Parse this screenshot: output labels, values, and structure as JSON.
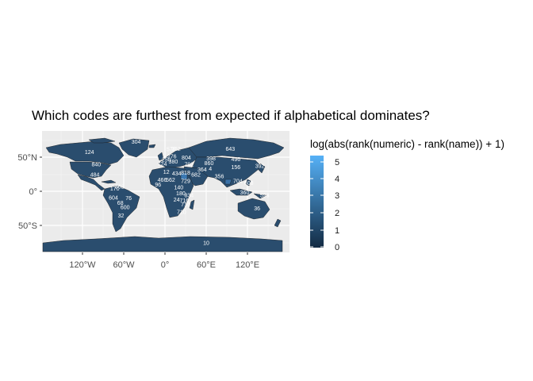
{
  "title": "Which codes are furthest from expected if alphabetical dominates?",
  "colors": {
    "panel_bg": "#ebebeb",
    "grid": "#ffffff",
    "scale_low": "#132b43",
    "scale_high": "#56b1f7",
    "land_fill_typical": "#2a4d6e",
    "country_border": "#1a1a1a"
  },
  "chart_data": {
    "type": "choropleth map",
    "title": "Which codes are furthest from expected if alphabetical dominates?",
    "projection": "equirectangular",
    "x_axis": {
      "ticks": [
        -120,
        -60,
        0,
        60,
        120
      ],
      "tick_labels": [
        "120°W",
        "60°W",
        "0°",
        "60°E",
        "120°E"
      ],
      "range": [
        -180,
        180
      ]
    },
    "y_axis": {
      "ticks": [
        -50,
        0,
        50
      ],
      "tick_labels": [
        "50°S",
        "0°",
        "50°N"
      ],
      "range": [
        -90,
        84
      ]
    },
    "grid": true,
    "legend": {
      "title": "log(abs(rank(numeric) - rank(name)) + 1)",
      "type": "continuous",
      "range": [
        0,
        5.6
      ],
      "ticks": [
        0,
        1,
        2,
        3,
        4,
        5
      ],
      "tick_labels": [
        "0",
        "1",
        "2",
        "3",
        "4",
        "5"
      ],
      "position": "right"
    },
    "country_labels": [
      {
        "text": "304",
        "lon": -42,
        "lat": 72
      },
      {
        "text": "124",
        "lon": -110,
        "lat": 57
      },
      {
        "text": "840",
        "lon": -100,
        "lat": 39
      },
      {
        "text": "484",
        "lon": -102,
        "lat": 24
      },
      {
        "text": "76",
        "lon": -53,
        "lat": -10
      },
      {
        "text": "604",
        "lon": -75,
        "lat": -9
      },
      {
        "text": "68",
        "lon": -65,
        "lat": -17
      },
      {
        "text": "600",
        "lon": -58,
        "lat": -23
      },
      {
        "text": "32",
        "lon": -64,
        "lat": -35
      },
      {
        "text": "170",
        "lon": -73,
        "lat": 4
      },
      {
        "text": "862",
        "lon": -66,
        "lat": 7
      },
      {
        "text": "643",
        "lon": 95,
        "lat": 62
      },
      {
        "text": "398",
        "lon": 67,
        "lat": 48
      },
      {
        "text": "496",
        "lon": 103,
        "lat": 47
      },
      {
        "text": "156",
        "lon": 103,
        "lat": 35
      },
      {
        "text": "356",
        "lon": 79,
        "lat": 22
      },
      {
        "text": "36",
        "lon": 134,
        "lat": -25
      },
      {
        "text": "10",
        "lon": 60,
        "lat": -75
      },
      {
        "text": "562",
        "lon": 8,
        "lat": 17
      },
      {
        "text": "434",
        "lon": 17,
        "lat": 26
      },
      {
        "text": "729",
        "lon": 30,
        "lat": 15
      },
      {
        "text": "818",
        "lon": 30,
        "lat": 27
      },
      {
        "text": "180",
        "lon": 23,
        "lat": -3
      },
      {
        "text": "24",
        "lon": 17,
        "lat": -12
      },
      {
        "text": "716",
        "lon": 30,
        "lat": -19
      },
      {
        "text": "710",
        "lon": 24,
        "lat": -30
      },
      {
        "text": "834",
        "lon": 35,
        "lat": -6
      },
      {
        "text": "140",
        "lon": 20,
        "lat": 6
      },
      {
        "text": "364",
        "lon": 54,
        "lat": 32
      },
      {
        "text": "682",
        "lon": 45,
        "lat": 24
      },
      {
        "text": "4",
        "lon": 66,
        "lat": 33
      },
      {
        "text": "860",
        "lon": 64,
        "lat": 41
      },
      {
        "text": "12",
        "lon": 2,
        "lat": 28
      },
      {
        "text": "466",
        "lon": -4,
        "lat": 17
      },
      {
        "text": "250",
        "lon": 2,
        "lat": 46
      },
      {
        "text": "724",
        "lon": -4,
        "lat": 40
      },
      {
        "text": "276",
        "lon": 10,
        "lat": 51
      },
      {
        "text": "380",
        "lon": 12,
        "lat": 43
      },
      {
        "text": "792",
        "lon": 35,
        "lat": 39
      },
      {
        "text": "804",
        "lon": 31,
        "lat": 49
      },
      {
        "text": "578",
        "lon": 9,
        "lat": 61
      },
      {
        "text": "752",
        "lon": 16,
        "lat": 62
      },
      {
        "text": "704",
        "lon": 106,
        "lat": 15
      },
      {
        "text": "360",
        "lon": 116,
        "lat": -2
      },
      {
        "text": "598",
        "lon": 145,
        "lat": -6
      },
      {
        "text": "608",
        "lon": 122,
        "lat": 12
      },
      {
        "text": "392",
        "lon": 138,
        "lat": 37
      },
      {
        "text": "96",
        "lon": -10,
        "lat": 10
      },
      {
        "text": "716",
        "lon": 28,
        "lat": -13
      }
    ]
  }
}
